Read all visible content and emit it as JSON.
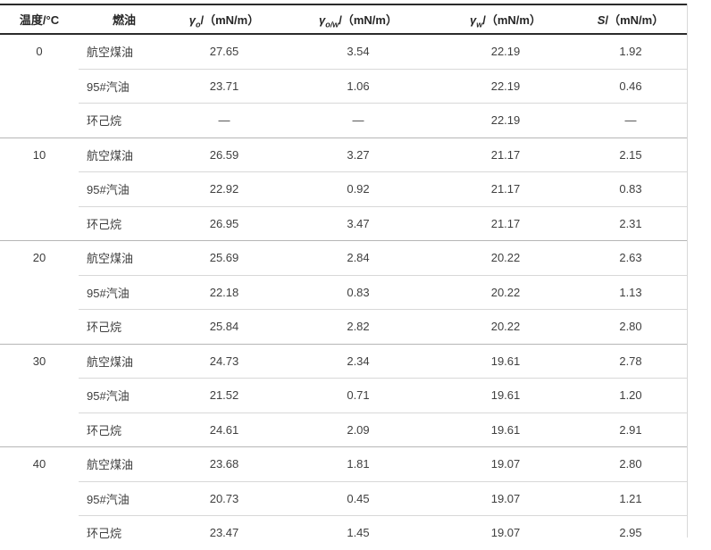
{
  "header": {
    "cols": [
      {
        "sym": "γ",
        "sub": "o",
        "unit": "/（mN/m）"
      },
      {
        "sym": "γ",
        "sub": "o/w",
        "unit": "/（mN/m）"
      },
      {
        "sym": "γ",
        "sub": "w",
        "unit": "/（mN/m）"
      },
      {
        "sym": "S",
        "sub": "",
        "unit": "/（mN/m）"
      }
    ]
  },
  "chart_data": {
    "type": "table",
    "title": "",
    "columns": [
      "温度/°C",
      "燃油",
      "γo/（mN/m）",
      "γo/w/（mN/m）",
      "γw/（mN/m）",
      "S/（mN/m）"
    ],
    "groups": [
      {
        "temp": "0",
        "rows": [
          [
            "航空煤油",
            "27.65",
            "3.54",
            "22.19",
            "1.92"
          ],
          [
            "95#汽油",
            "23.71",
            "1.06",
            "22.19",
            "0.46"
          ],
          [
            "环己烷",
            "—",
            "—",
            "22.19",
            "—"
          ]
        ]
      },
      {
        "temp": "10",
        "rows": [
          [
            "航空煤油",
            "26.59",
            "3.27",
            "21.17",
            "2.15"
          ],
          [
            "95#汽油",
            "22.92",
            "0.92",
            "21.17",
            "0.83"
          ],
          [
            "环己烷",
            "26.95",
            "3.47",
            "21.17",
            "2.31"
          ]
        ]
      },
      {
        "temp": "20",
        "rows": [
          [
            "航空煤油",
            "25.69",
            "2.84",
            "20.22",
            "2.63"
          ],
          [
            "95#汽油",
            "22.18",
            "0.83",
            "20.22",
            "1.13"
          ],
          [
            "环己烷",
            "25.84",
            "2.82",
            "20.22",
            "2.80"
          ]
        ]
      },
      {
        "temp": "30",
        "rows": [
          [
            "航空煤油",
            "24.73",
            "2.34",
            "19.61",
            "2.78"
          ],
          [
            "95#汽油",
            "21.52",
            "0.71",
            "19.61",
            "1.20"
          ],
          [
            "环己烷",
            "24.61",
            "2.09",
            "19.61",
            "2.91"
          ]
        ]
      },
      {
        "temp": "40",
        "rows": [
          [
            "航空煤油",
            "23.68",
            "1.81",
            "19.07",
            "2.80"
          ],
          [
            "95#汽油",
            "20.73",
            "0.45",
            "19.07",
            "1.21"
          ],
          [
            "环己烷",
            "23.47",
            "1.45",
            "19.07",
            "2.95"
          ]
        ]
      }
    ]
  }
}
